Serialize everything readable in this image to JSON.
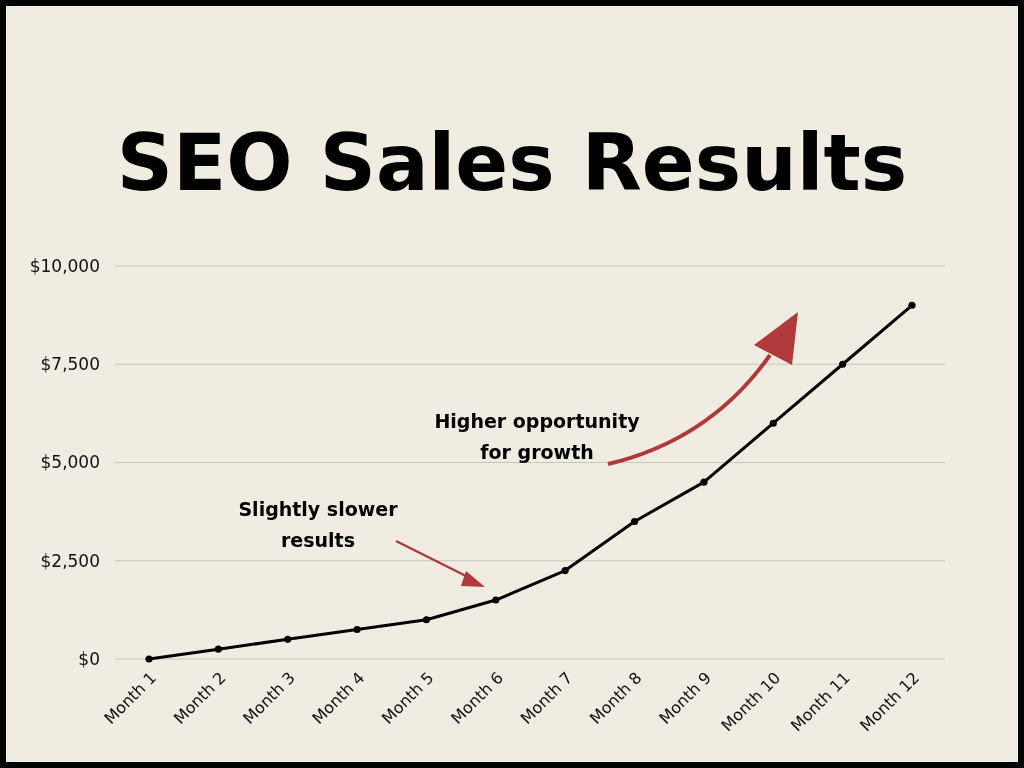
{
  "chart_data": {
    "type": "line",
    "title": "SEO Sales Results",
    "categories": [
      "Month 1",
      "Month 2",
      "Month 3",
      "Month 4",
      "Month 5",
      "Month 6",
      "Month 7",
      "Month 8",
      "Month 9",
      "Month 10",
      "Month 11",
      "Month 12"
    ],
    "series": [
      {
        "color": "#000000",
        "values": [
          0,
          250,
          500,
          750,
          1000,
          1500,
          2250,
          3500,
          4500,
          6000,
          7500,
          9000
        ]
      }
    ],
    "ylim": [
      0,
      10000
    ],
    "yticks": [
      {
        "value": 0,
        "label": "$0"
      },
      {
        "value": 2500,
        "label": "$2,500"
      },
      {
        "value": 5000,
        "label": "$5,000"
      },
      {
        "value": 7500,
        "label": "$7,500"
      },
      {
        "value": 10000,
        "label": "$10,000"
      }
    ],
    "grid": "y",
    "marker": "circle",
    "line_style": "solid",
    "annotations": [
      "Higher opportunity for growth",
      "Slightly slower results"
    ]
  }
}
